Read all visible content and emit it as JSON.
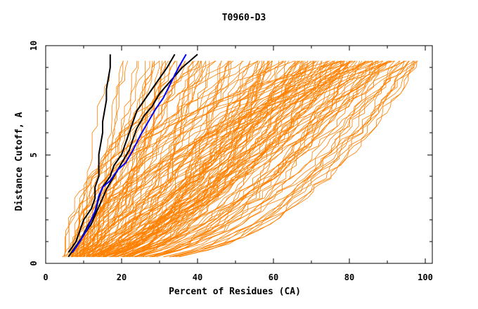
{
  "chart_data": {
    "type": "line",
    "title": "T0960-D3",
    "xlabel": "Percent of Residues (CA)",
    "ylabel": "Distance Cutoff, A",
    "xlim": [
      0,
      100
    ],
    "ylim": [
      0,
      10
    ],
    "xticks": [
      "0",
      "20",
      "40",
      "60",
      "80",
      "100"
    ],
    "yticks": [
      "0",
      "5",
      "10"
    ],
    "grid": false,
    "legend": "none",
    "colors": {
      "models": "#ff8000",
      "highlight_black": "#000000",
      "highlight_blue": "#0000ff"
    },
    "series": [
      {
        "color": "#000000",
        "x": [
          6,
          8,
          9,
          10,
          12,
          13,
          13,
          14,
          14,
          15,
          15,
          16,
          16,
          17,
          17
        ],
        "y": [
          0.5,
          1.0,
          1.5,
          2.0,
          2.5,
          3.0,
          3.5,
          4.0,
          5.0,
          6.0,
          6.5,
          7.5,
          8.0,
          9.0,
          9.6
        ]
      },
      {
        "color": "#000000",
        "x": [
          7,
          9,
          11,
          13,
          14,
          15,
          17,
          18,
          20,
          21,
          22,
          23,
          24,
          26,
          28,
          30,
          32,
          34
        ],
        "y": [
          0.5,
          1.0,
          1.7,
          2.3,
          3.0,
          3.5,
          4.0,
          4.5,
          5.0,
          5.5,
          6.0,
          6.5,
          7.0,
          7.5,
          8.0,
          8.5,
          9.0,
          9.6
        ]
      },
      {
        "color": "#000000",
        "x": [
          6,
          8,
          10,
          12,
          14,
          16,
          18,
          20,
          22,
          23,
          24,
          26,
          28,
          30,
          32,
          34,
          36,
          38,
          40
        ],
        "y": [
          0.3,
          0.8,
          1.3,
          1.8,
          2.6,
          3.4,
          4.0,
          4.6,
          5.2,
          5.7,
          6.2,
          6.8,
          7.2,
          7.8,
          8.2,
          8.6,
          9.0,
          9.3,
          9.6
        ]
      },
      {
        "color": "#0000ff",
        "x": [
          7,
          9,
          11,
          13,
          14,
          15,
          17,
          19,
          21,
          23,
          25,
          27,
          29,
          31,
          33,
          35,
          37
        ],
        "y": [
          0.5,
          1.0,
          1.6,
          2.4,
          3.1,
          3.5,
          3.8,
          4.3,
          4.6,
          5.2,
          5.9,
          6.5,
          7.1,
          7.6,
          8.3,
          9.0,
          9.6
        ]
      }
    ]
  }
}
